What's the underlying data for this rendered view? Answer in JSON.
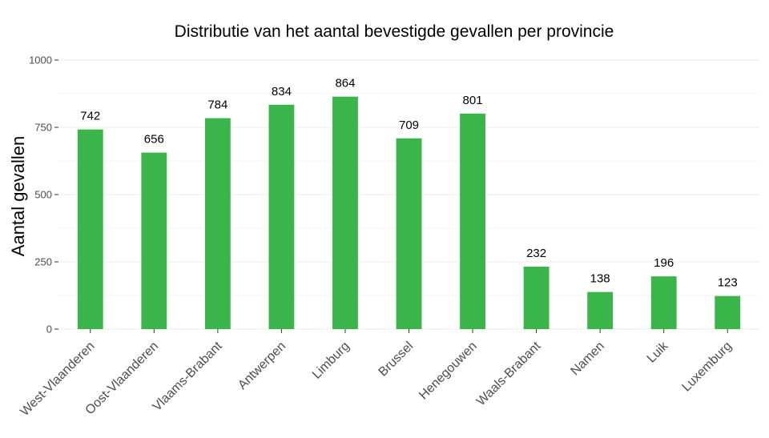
{
  "chart_data": {
    "type": "bar",
    "title": "Distributie van het aantal bevestigde gevallen per provincie",
    "xlabel": "",
    "ylabel": "Aantal gevallen",
    "ylim": [
      0,
      1000
    ],
    "yticks": [
      0,
      250,
      500,
      750,
      1000
    ],
    "grid": true,
    "bar_color": "#3ab54a",
    "categories": [
      "West-Vlaanderen",
      "Oost-Vlaanderen",
      "Vlaams-Brabant",
      "Antwerpen",
      "Limburg",
      "Brussel",
      "Henegouwen",
      "Waals-Brabant",
      "Namen",
      "Luik",
      "Luxemburg"
    ],
    "values": [
      742,
      656,
      784,
      834,
      864,
      709,
      801,
      232,
      138,
      196,
      123
    ]
  }
}
